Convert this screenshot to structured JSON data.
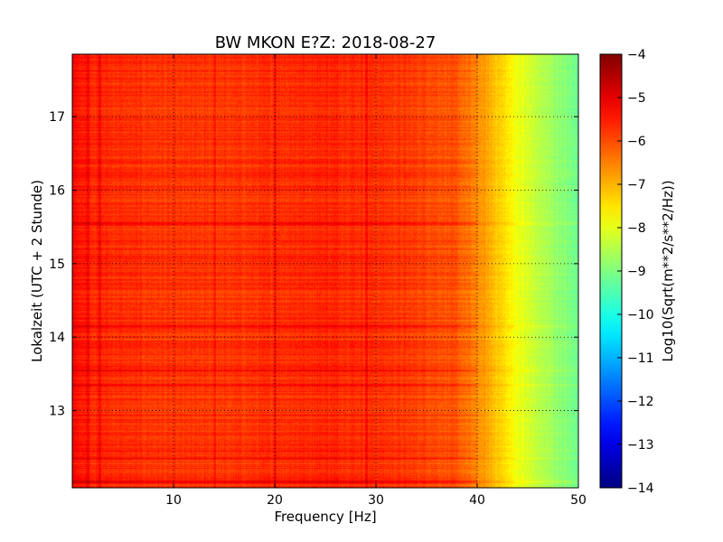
{
  "chart_data": {
    "type": "heatmap",
    "title": "BW MKON E?Z: 2018-08-27",
    "xlabel": "Frequency [Hz]",
    "ylabel": "Lokalzeit (UTC + 2 Stunde)",
    "xlim": [
      0,
      50
    ],
    "ylim": [
      17.85,
      11.95
    ],
    "x_ticks": [
      10,
      20,
      30,
      40,
      50
    ],
    "x_tick_labels": [
      "10",
      "20",
      "30",
      "40",
      "50"
    ],
    "y_ticks": [
      13,
      14,
      15,
      16,
      17
    ],
    "y_tick_labels": [
      "13",
      "14",
      "15",
      "16",
      "17"
    ],
    "grid": true,
    "colormap": "jet",
    "colorbar": {
      "label": "Log10(Sqrt(m**2/s**2/Hz))",
      "min": -14,
      "max": -4,
      "ticks": [
        -4,
        -5,
        -6,
        -7,
        -8,
        -9,
        -10,
        -11,
        -12,
        -13,
        -14
      ],
      "tick_labels": [
        "−4",
        "−5",
        "−6",
        "−7",
        "−8",
        "−9",
        "−10",
        "−11",
        "−12",
        "−13",
        "−14"
      ]
    },
    "spectral_profile": {
      "frequency_hz": [
        0,
        2,
        5,
        10,
        15,
        20,
        25,
        30,
        35,
        38,
        40,
        42,
        44,
        46,
        48,
        50
      ],
      "log10_amplitude": [
        -5.3,
        -5.6,
        -5.7,
        -5.8,
        -5.8,
        -5.7,
        -5.6,
        -5.7,
        -5.9,
        -6.1,
        -6.6,
        -7.2,
        -7.9,
        -8.4,
        -8.8,
        -9.2
      ]
    },
    "strong_bands_hour": [
      12.03,
      12.35,
      13.35,
      13.55,
      14.15,
      15.55,
      16.2
    ],
    "strong_bands_log10_amplitude": [
      -4.9,
      -5.2,
      -5.0,
      -5.1,
      -5.3,
      -5.2,
      -5.4
    ],
    "strong_lines_hz": [
      1.5,
      2.7,
      14.0,
      20.0,
      29.0
    ]
  }
}
